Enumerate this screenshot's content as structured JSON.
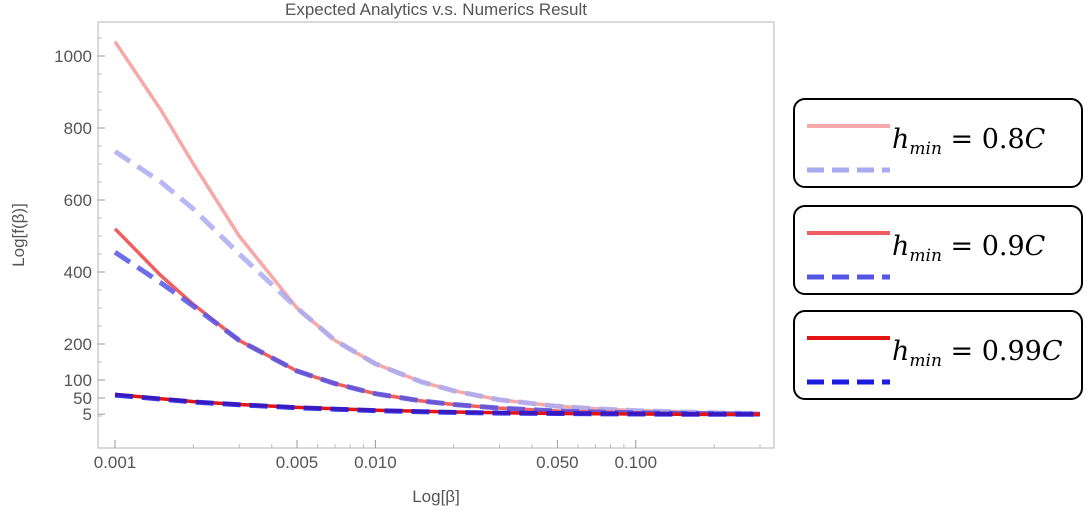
{
  "chart_data": {
    "type": "line",
    "title": "Expected Analytics v.s. Numerics Result",
    "xlabel": "Log[β]",
    "ylabel": "Log[f(β)]",
    "x_scale": "log",
    "xlim": [
      0.001,
      0.3
    ],
    "ylim": [
      -30,
      1090
    ],
    "x_ticks": [
      0.001,
      0.005,
      0.01,
      0.05,
      0.1
    ],
    "x_tick_labels": [
      "0.001",
      "0.005",
      "0.010",
      "0.050",
      "0.100"
    ],
    "y_ticks": [
      5,
      50,
      100,
      200,
      400,
      600,
      800,
      1000
    ],
    "y_tick_labels": [
      "5",
      "50",
      "100",
      "200",
      "400",
      "600",
      "800",
      "1000"
    ],
    "x": [
      0.001,
      0.0015,
      0.002,
      0.003,
      0.005,
      0.007,
      0.01,
      0.015,
      0.02,
      0.03,
      0.05,
      0.07,
      0.1,
      0.15,
      0.2,
      0.3
    ],
    "series": [
      {
        "key": "s08_analytic",
        "style": "solid",
        "color": "#f7a8a8",
        "values": [
          1040,
          850,
          700,
          500,
          300,
          210,
          145,
          95,
          70,
          45,
          27,
          20,
          15,
          11,
          9,
          7
        ]
      },
      {
        "key": "s08_numeric",
        "style": "dashed",
        "color": "#aaaaf2",
        "values": [
          735,
          650,
          575,
          450,
          300,
          210,
          145,
          95,
          70,
          45,
          27,
          20,
          15,
          11,
          9,
          7
        ]
      },
      {
        "key": "s09_analytic",
        "style": "solid",
        "color": "#ef5f5f",
        "values": [
          520,
          390,
          310,
          210,
          125,
          90,
          62,
          42,
          32,
          22,
          14,
          11,
          9,
          7,
          6,
          5
        ]
      },
      {
        "key": "s09_numeric",
        "style": "dashed",
        "color": "#5555e8",
        "values": [
          455,
          370,
          305,
          210,
          125,
          90,
          62,
          42,
          32,
          22,
          14,
          11,
          9,
          7,
          6,
          5
        ]
      },
      {
        "key": "s099_analytic",
        "style": "solid",
        "color": "#e41414",
        "values": [
          60,
          48,
          40,
          32,
          24,
          20,
          16,
          13,
          11,
          9,
          7,
          6,
          5.5,
          5,
          5,
          5
        ]
      },
      {
        "key": "s099_numeric",
        "style": "dashed",
        "color": "#1a1ae0",
        "values": [
          58,
          47,
          39,
          31,
          23,
          19,
          15,
          12,
          10,
          8,
          7,
          6,
          5.5,
          5,
          5,
          5
        ]
      }
    ],
    "legend": [
      {
        "label": "0.8",
        "solid_color": "#f7a8a8",
        "dashed_color": "#aaaaf2"
      },
      {
        "label": "0.9",
        "solid_color": "#ef5f5f",
        "dashed_color": "#5555e8"
      },
      {
        "label": "0.99",
        "solid_color": "#e41414",
        "dashed_color": "#1a1ae0"
      }
    ],
    "legend_placement": "right",
    "legend_prefix": "h",
    "legend_sub": "min",
    "legend_equals": "=",
    "legend_suffix": "C",
    "grid": false
  }
}
